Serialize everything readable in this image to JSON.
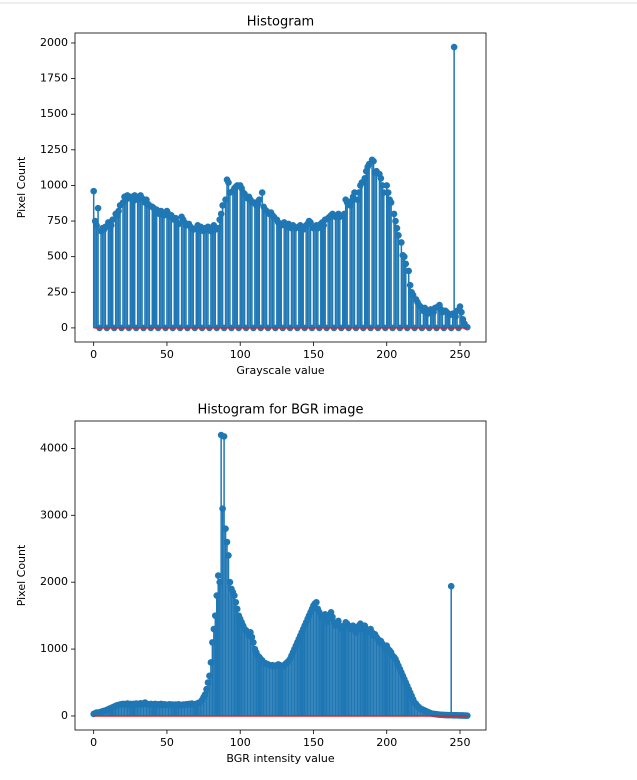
{
  "chart_data": [
    {
      "type": "stem",
      "title": "Histogram",
      "xlabel": "Grayscale value",
      "ylabel": "Pixel Count",
      "color": "#1f77b4",
      "baseline_color": "#d62728",
      "xlim": [
        -12.75,
        267.75
      ],
      "xticks": [
        0,
        50,
        100,
        150,
        200,
        250
      ],
      "ylim": [
        -99,
        2070
      ],
      "yticks": [
        0,
        250,
        500,
        750,
        1000,
        1250,
        1500,
        1750,
        2000
      ],
      "values": [
        960,
        750,
        720,
        840,
        0,
        680,
        700,
        690,
        710,
        0,
        740,
        730,
        720,
        760,
        0,
        800,
        790,
        820,
        860,
        0,
        880,
        920,
        900,
        930,
        0,
        910,
        920,
        890,
        930,
        0,
        900,
        920,
        930,
        910,
        0,
        880,
        900,
        870,
        860,
        0,
        850,
        840,
        830,
        830,
        0,
        800,
        820,
        810,
        790,
        0,
        820,
        800,
        780,
        790,
        0,
        760,
        770,
        740,
        730,
        0,
        780,
        760,
        740,
        720,
        0,
        730,
        710,
        700,
        690,
        0,
        700,
        720,
        690,
        710,
        0,
        680,
        700,
        690,
        710,
        0,
        680,
        700,
        720,
        690,
        0,
        700,
        760,
        800,
        860,
        0,
        900,
        1040,
        1020,
        950,
        0,
        960,
        980,
        990,
        1000,
        0,
        1000,
        980,
        950,
        940,
        0,
        910,
        920,
        900,
        880,
        0,
        880,
        860,
        870,
        900,
        0,
        950,
        850,
        830,
        820,
        0,
        800,
        810,
        790,
        780,
        0,
        760,
        740,
        730,
        720,
        0,
        740,
        720,
        710,
        730,
        0,
        700,
        720,
        710,
        700,
        0,
        710,
        720,
        700,
        690,
        0,
        720,
        730,
        750,
        740,
        0,
        700,
        710,
        720,
        700,
        0,
        730,
        740,
        720,
        760,
        0,
        770,
        780,
        790,
        800,
        0,
        780,
        790,
        800,
        780,
        0,
        790,
        800,
        900,
        880,
        0,
        860,
        890,
        920,
        950,
        0,
        900,
        950,
        1000,
        1020,
        0,
        1050,
        1100,
        1130,
        1150,
        0,
        1180,
        1170,
        1090,
        1100,
        0,
        1080,
        1050,
        1000,
        950,
        0,
        1000,
        950,
        900,
        880,
        0,
        800,
        750,
        700,
        650,
        0,
        600,
        510,
        500,
        450,
        0,
        400,
        300,
        250,
        230,
        0,
        200,
        180,
        160,
        150,
        0,
        120,
        140,
        110,
        100,
        0,
        130,
        120,
        110,
        140,
        0,
        150,
        160,
        130,
        110,
        0,
        120,
        110,
        100,
        90,
        0,
        100,
        1971,
        80,
        120,
        0,
        150,
        110,
        60,
        30,
        10,
        5
      ]
    },
    {
      "type": "stem",
      "title": "Histogram for BGR image",
      "xlabel": "BGR intensity value",
      "ylabel": "Pixel Count",
      "color": "#1f77b4",
      "baseline_color": "#d62728",
      "xlim": [
        -12.75,
        267.75
      ],
      "xticks": [
        0,
        50,
        100,
        150,
        200,
        250
      ],
      "ylim": [
        -210,
        4410
      ],
      "yticks": [
        0,
        1000,
        2000,
        3000,
        4000
      ],
      "values": [
        30,
        40,
        50,
        45,
        55,
        60,
        70,
        75,
        80,
        90,
        100,
        110,
        120,
        130,
        140,
        150,
        160,
        165,
        170,
        175,
        180,
        175,
        180,
        185,
        170,
        180,
        175,
        180,
        170,
        185,
        180,
        175,
        190,
        170,
        180,
        200,
        185,
        175,
        170,
        180,
        175,
        170,
        180,
        165,
        175,
        170,
        180,
        160,
        175,
        170,
        165,
        170,
        175,
        160,
        170,
        165,
        170,
        160,
        175,
        165,
        160,
        170,
        165,
        175,
        170,
        180,
        175,
        185,
        170,
        175,
        180,
        190,
        200,
        210,
        240,
        280,
        320,
        400,
        500,
        600,
        800,
        1100,
        1300,
        1500,
        1800,
        2100,
        2000,
        4200,
        3100,
        4180,
        2800,
        2600,
        2400,
        2000,
        1900,
        1850,
        1800,
        1700,
        1600,
        1500,
        1450,
        1400,
        1350,
        1300,
        1280,
        1250,
        1200,
        1250,
        1180,
        1100,
        1000,
        950,
        900,
        880,
        850,
        830,
        800,
        790,
        780,
        770,
        760,
        750,
        760,
        740,
        750,
        760,
        770,
        760,
        750,
        740,
        760,
        780,
        800,
        820,
        850,
        900,
        950,
        1000,
        1050,
        1100,
        1150,
        1200,
        1250,
        1300,
        1350,
        1400,
        1450,
        1500,
        1550,
        1600,
        1650,
        1680,
        1700,
        1600,
        1550,
        1500,
        1450,
        1500,
        1520,
        1400,
        1450,
        1500,
        1550,
        1480,
        1400,
        1350,
        1380,
        1420,
        1350,
        1300,
        1320,
        1350,
        1400,
        1380,
        1350,
        1300,
        1320,
        1350,
        1280,
        1250,
        1300,
        1350,
        1380,
        1300,
        1320,
        1350,
        1300,
        1280,
        1250,
        1300,
        1250,
        1200,
        1220,
        1180,
        1150,
        1100,
        1120,
        1080,
        1050,
        1000,
        1050,
        1000,
        980,
        950,
        900,
        880,
        850,
        800,
        750,
        700,
        650,
        600,
        550,
        500,
        450,
        400,
        350,
        300,
        250,
        200,
        180,
        150,
        130,
        110,
        100,
        90,
        80,
        70,
        60,
        50,
        40,
        35,
        30,
        28,
        25,
        22,
        20,
        18,
        16,
        15,
        14,
        13,
        12,
        11,
        1940,
        10,
        10,
        9,
        9,
        8,
        8,
        7,
        7,
        6,
        6,
        5
      ]
    }
  ]
}
